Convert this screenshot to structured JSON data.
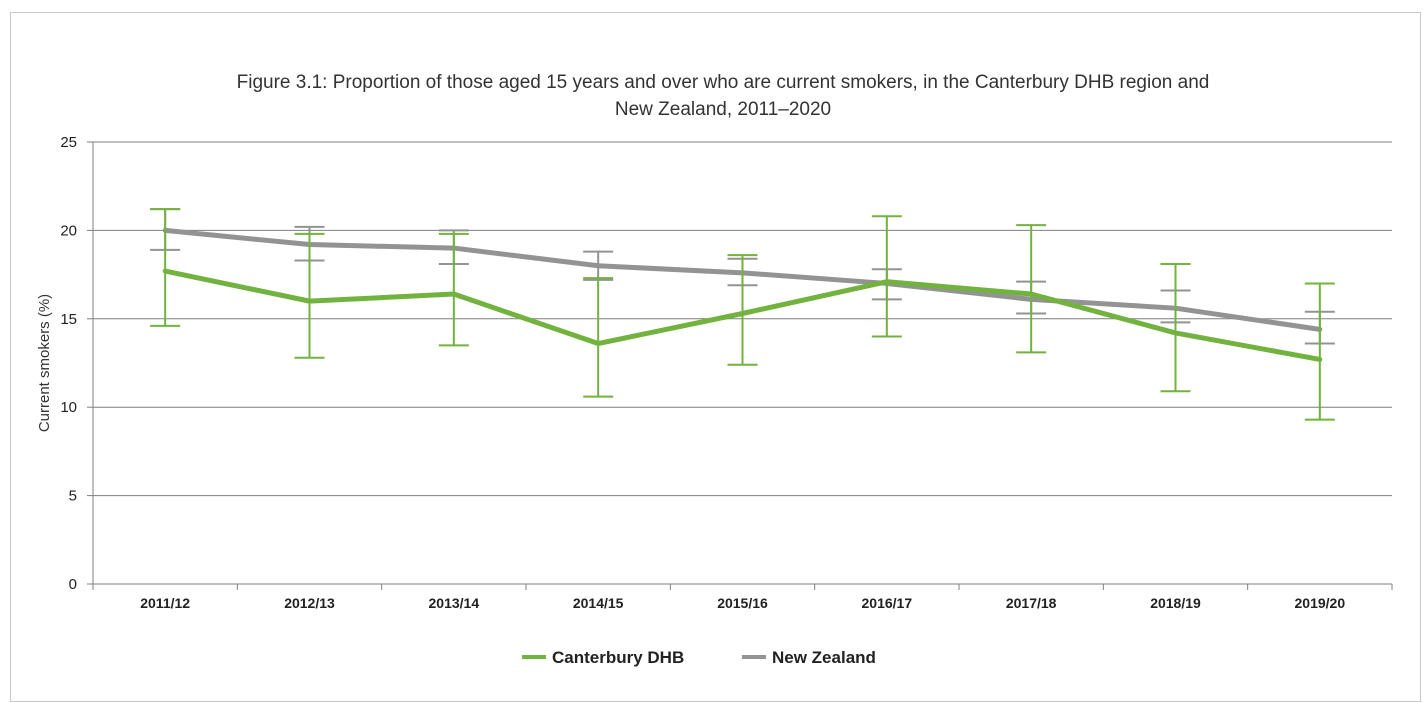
{
  "chart_data": {
    "type": "line",
    "title_lines": [
      "Figure 3.1: Proportion of those aged 15 years and over who are current smokers, in the Canterbury DHB region and",
      "New Zealand, 2011–2020"
    ],
    "xlabel": "",
    "ylabel": "Current smokers (%)",
    "ylim": [
      0,
      25
    ],
    "y_ticks": [
      "0",
      "5",
      "10",
      "15",
      "20",
      "25"
    ],
    "grid": "horizontal",
    "legend_position": "bottom",
    "categories": [
      "2011/12",
      "2012/13",
      "2013/14",
      "2014/15",
      "2015/16",
      "2016/17",
      "2017/18",
      "2018/19",
      "2019/20"
    ],
    "series": [
      {
        "name": "Canterbury DHB",
        "color": "#72b23e",
        "values": [
          17.7,
          16.0,
          16.4,
          13.6,
          15.3,
          17.1,
          16.4,
          14.2,
          12.7
        ],
        "lower": [
          14.6,
          12.8,
          13.5,
          10.6,
          12.4,
          14.0,
          13.1,
          10.9,
          9.3
        ],
        "upper": [
          21.2,
          19.8,
          19.8,
          17.3,
          18.6,
          20.8,
          20.3,
          18.1,
          17.0
        ]
      },
      {
        "name": "New Zealand",
        "color": "#939393",
        "values": [
          20.0,
          19.2,
          19.0,
          18.0,
          17.6,
          17.0,
          16.1,
          15.6,
          14.4
        ],
        "lower": [
          18.9,
          18.3,
          18.1,
          17.2,
          16.9,
          16.1,
          15.3,
          14.8,
          13.6
        ],
        "upper": [
          21.2,
          20.2,
          20.0,
          18.8,
          18.4,
          17.8,
          17.1,
          16.6,
          15.4
        ]
      }
    ]
  }
}
